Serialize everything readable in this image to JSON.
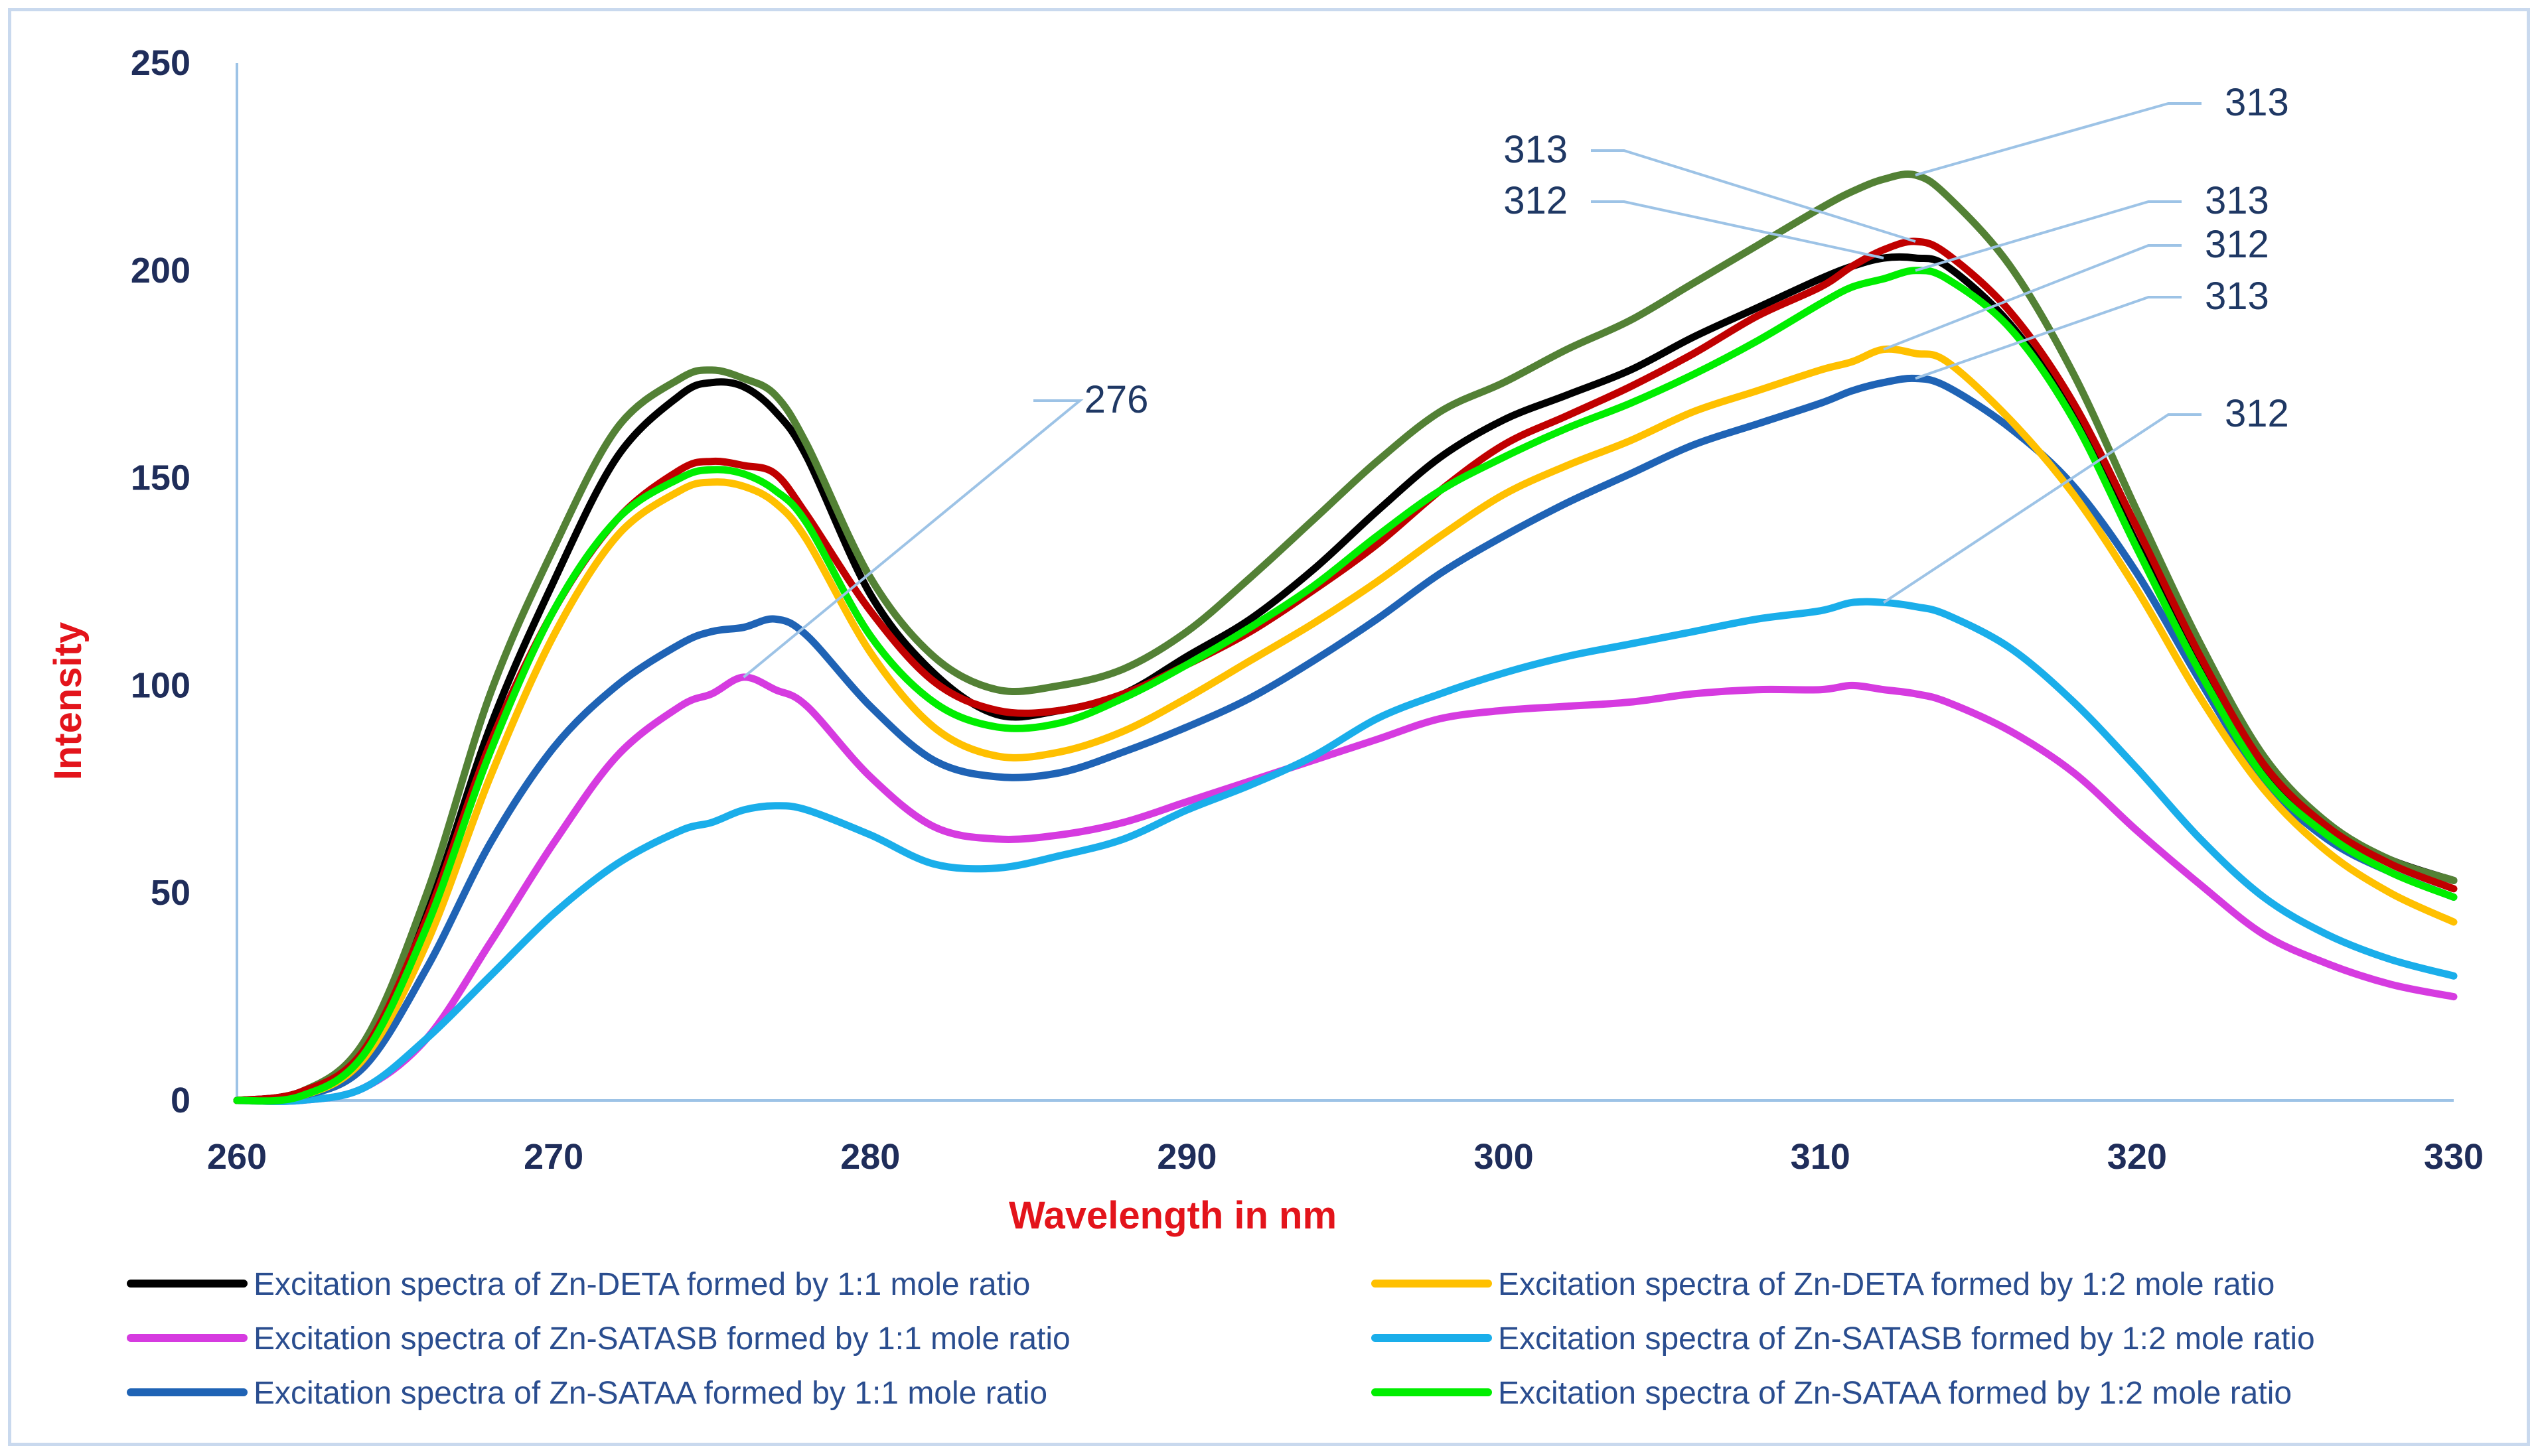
{
  "chart_data": {
    "type": "line",
    "title": "",
    "xlabel": "Wavelength in nm",
    "ylabel": "Intensity",
    "xlim": [
      260,
      330
    ],
    "ylim": [
      0,
      250
    ],
    "x_ticks": [
      260,
      270,
      280,
      290,
      300,
      310,
      320,
      330
    ],
    "y_ticks": [
      0,
      50,
      100,
      150,
      200,
      250
    ],
    "grid": false,
    "legend_position": "bottom",
    "x": [
      260,
      262,
      264,
      266,
      268,
      270,
      272,
      274,
      275,
      276,
      277,
      278,
      280,
      282,
      284,
      286,
      288,
      290,
      292,
      294,
      296,
      298,
      300,
      302,
      304,
      306,
      308,
      310,
      311,
      312,
      313,
      314,
      316,
      318,
      320,
      322,
      324,
      326,
      328,
      330
    ],
    "series": [
      {
        "name": "Excitation spectra of Zn-DETA formed by 1:1 mole ratio",
        "color": "#000000",
        "values": [
          0,
          2,
          12,
          45,
          90,
          125,
          155,
          170,
          173,
          172,
          166,
          155,
          122,
          103,
          93,
          94,
          98,
          107,
          116,
          128,
          142,
          155,
          164,
          170,
          176,
          184,
          191,
          198,
          201,
          203,
          203,
          201,
          187,
          165,
          134,
          105,
          80,
          66,
          58,
          53
        ]
      },
      {
        "name": "Excitation spectra of Zn-DETA formed by 1:2 mole ratio",
        "color": "#ffc000",
        "values": [
          0,
          1,
          10,
          38,
          78,
          112,
          136,
          147,
          149,
          148,
          144,
          135,
          108,
          90,
          83,
          84,
          89,
          97,
          106,
          115,
          125,
          136,
          146,
          153,
          159,
          166,
          171,
          176,
          178,
          181,
          180,
          178,
          164,
          146,
          123,
          97,
          75,
          60,
          50,
          43
        ]
      },
      {
        "name": "Excitation spectra of Zn-SATASB formed by 1:1 mole ratio",
        "color": "#d63be0",
        "values": [
          0,
          0,
          3,
          15,
          38,
          62,
          83,
          95,
          98,
          102,
          99,
          95,
          78,
          66,
          63,
          64,
          67,
          72,
          77,
          82,
          87,
          92,
          94,
          95,
          96,
          98,
          99,
          99,
          100,
          99,
          98,
          96,
          89,
          79,
          65,
          52,
          40,
          33,
          28,
          25
        ]
      },
      {
        "name": "Excitation spectra of Zn-SATASB formed by 1:2 mole ratio",
        "color": "#1aaeea",
        "values": [
          0,
          0,
          3,
          15,
          30,
          45,
          57,
          65,
          67,
          70,
          71,
          70,
          64,
          57,
          56,
          59,
          63,
          70,
          76,
          83,
          92,
          98,
          103,
          107,
          110,
          113,
          116,
          118,
          120,
          120,
          119,
          117,
          109,
          96,
          80,
          63,
          49,
          40,
          34,
          30
        ]
      },
      {
        "name": "Excitation spectra of Zn-SATAA formed by 1:1 mole ratio",
        "color": "#1f63b5",
        "values": [
          0,
          1,
          8,
          32,
          62,
          85,
          100,
          110,
          113,
          114,
          116,
          112,
          95,
          82,
          78,
          79,
          84,
          90,
          97,
          106,
          116,
          127,
          136,
          144,
          151,
          158,
          163,
          168,
          171,
          173,
          174,
          172,
          162,
          148,
          127,
          101,
          77,
          63,
          55,
          49
        ]
      },
      {
        "name": "Excitation spectra of Zn-SATAA formed by 1:2 mole ratio",
        "color": "#00ee00",
        "values": [
          0,
          1,
          11,
          42,
          84,
          118,
          140,
          150,
          152,
          151,
          147,
          139,
          112,
          96,
          90,
          91,
          97,
          105,
          114,
          124,
          136,
          147,
          155,
          162,
          168,
          175,
          183,
          192,
          196,
          198,
          200,
          198,
          186,
          164,
          133,
          103,
          78,
          64,
          55,
          49
        ]
      },
      {
        "name": "Series 7",
        "color": "#538135",
        "legend": false,
        "values": [
          0,
          2,
          14,
          50,
          98,
          133,
          162,
          174,
          176,
          174,
          170,
          158,
          126,
          107,
          99,
          100,
          104,
          113,
          126,
          140,
          154,
          166,
          173,
          181,
          188,
          197,
          206,
          215,
          219,
          222,
          223,
          218,
          201,
          175,
          142,
          110,
          83,
          67,
          58,
          53
        ]
      },
      {
        "name": "Series 8",
        "color": "#c00000",
        "legend": false,
        "values": [
          0,
          2,
          12,
          44,
          86,
          118,
          140,
          152,
          154,
          153,
          151,
          141,
          118,
          101,
          94,
          94,
          98,
          105,
          113,
          123,
          134,
          147,
          158,
          165,
          172,
          180,
          189,
          196,
          201,
          205,
          207,
          204,
          190,
          168,
          138,
          107,
          81,
          66,
          57,
          51
        ]
      }
    ],
    "annotations": [
      {
        "text": "276",
        "x": 276,
        "y": 102
      },
      {
        "text": "313",
        "x": 313,
        "y": 223
      },
      {
        "text": "313",
        "x": 313,
        "y": 207
      },
      {
        "text": "312",
        "x": 312,
        "y": 203
      },
      {
        "text": "313",
        "x": 313,
        "y": 200
      },
      {
        "text": "312",
        "x": 312,
        "y": 181
      },
      {
        "text": "313",
        "x": 313,
        "y": 174
      },
      {
        "text": "312",
        "x": 312,
        "y": 120
      }
    ]
  }
}
